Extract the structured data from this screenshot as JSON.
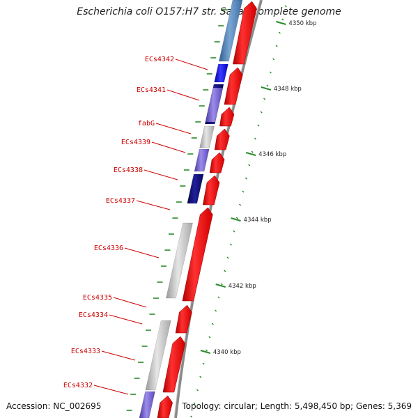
{
  "title": "Escherichia coli O157:H7 str. Sakai, complete genome",
  "footer": {
    "accession": "Accession: NC_002695",
    "summary": "Topology: circular; Length: 5,498,450 bp; Genes: 5,369"
  },
  "colors": {
    "forward_cds": "#ee1111",
    "backbone": "#888888",
    "tick": "#2a8a2a",
    "label": "#cc0000",
    "blue": "#1a1aee",
    "navy": "#101080",
    "steel": "#4a7fb5",
    "lavender": "#7060cc",
    "gray": "#c0c0c0"
  },
  "gene_labels": [
    {
      "name": "ECs4342"
    },
    {
      "name": "ECs4341"
    },
    {
      "name": "fabG"
    },
    {
      "name": "ECs4339"
    },
    {
      "name": "ECs4338"
    },
    {
      "name": "ECs4337"
    },
    {
      "name": "ECs4336"
    },
    {
      "name": "ECs4335"
    },
    {
      "name": "ECs4334"
    },
    {
      "name": "ECs4333"
    },
    {
      "name": "ECs4332"
    }
  ],
  "scale_ticks": [
    {
      "label": "4350 kbp"
    },
    {
      "label": "4348 kbp"
    },
    {
      "label": "4346 kbp"
    },
    {
      "label": "4344 kbp"
    },
    {
      "label": "4342 kbp"
    },
    {
      "label": "4340 kbp"
    }
  ]
}
